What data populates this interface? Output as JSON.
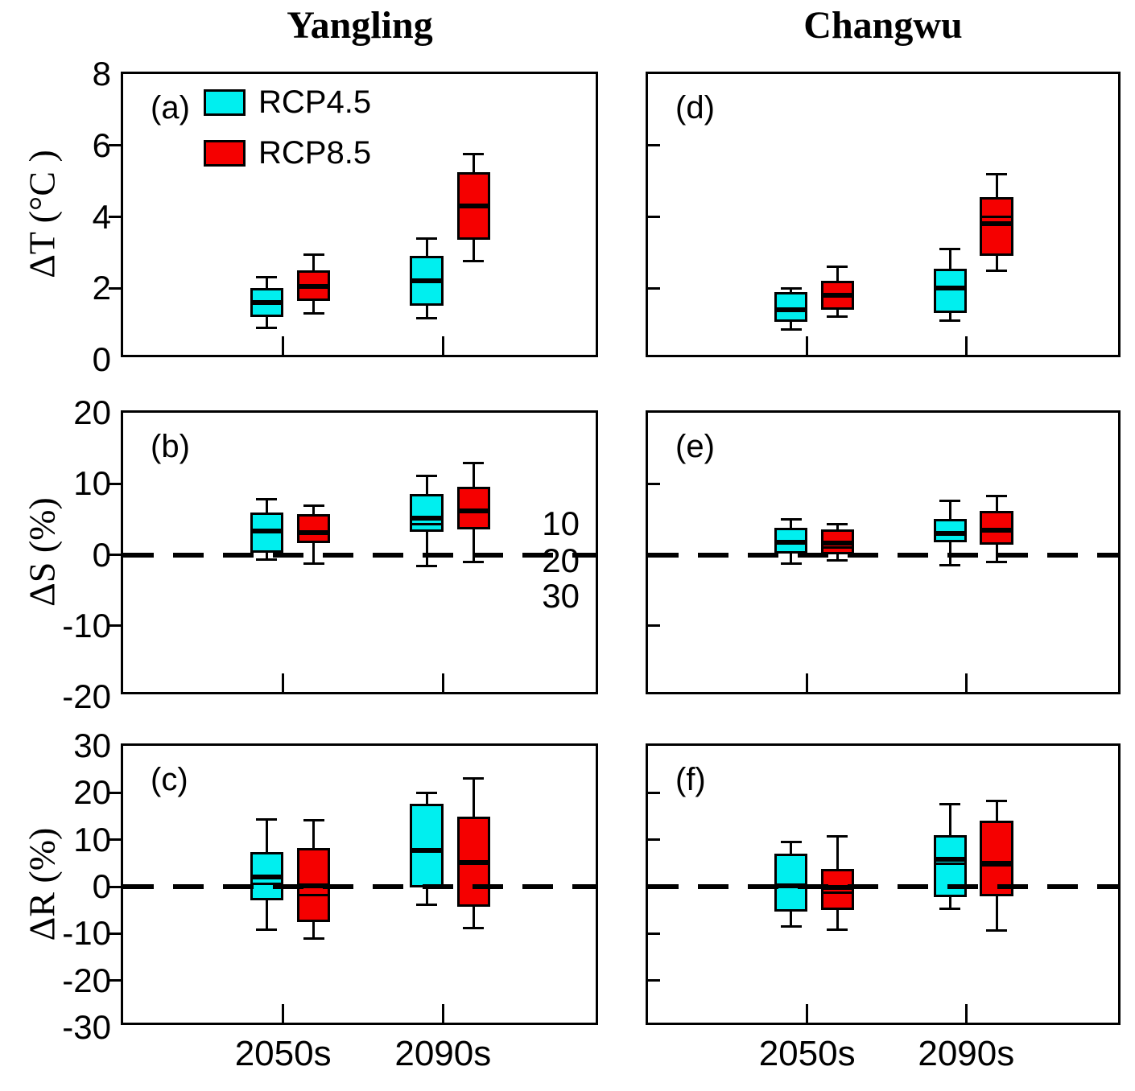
{
  "figure": {
    "column_titles": [
      "Yangling",
      "Changwu"
    ],
    "row_labels": [
      "ΔT (°C )",
      "ΔS (%)",
      "ΔR (%)"
    ],
    "legend": {
      "items": [
        {
          "label": "RCP4.5",
          "color": "#00efef"
        },
        {
          "label": "RCP8.5",
          "color": "#f50000"
        }
      ]
    },
    "x_axis_labels": [
      "2050s",
      "2090s"
    ]
  },
  "chart_data": [
    {
      "id": "a",
      "letter": "(a)",
      "type": "box",
      "site": "Yangling",
      "ylabel": "ΔT (°C )",
      "ylim": [
        0,
        8
      ],
      "yticks": [
        0,
        2,
        4,
        6,
        8
      ],
      "show_ytick_labels": true,
      "show_category_labels": false,
      "zero_line": false,
      "categories": [
        "2050s",
        "2090s"
      ],
      "legend_here": true,
      "series": [
        {
          "name": "RCP4.5",
          "color": "#00efef",
          "boxes": [
            {
              "whisker_low": 0.9,
              "q1": 1.2,
              "median": 1.6,
              "q3": 2.0,
              "whisker_high": 2.3
            },
            {
              "whisker_low": 1.15,
              "q1": 1.5,
              "median": 2.2,
              "q3": 2.9,
              "whisker_high": 3.4
            }
          ]
        },
        {
          "name": "RCP8.5",
          "color": "#f50000",
          "boxes": [
            {
              "whisker_low": 1.3,
              "q1": 1.65,
              "median": 2.05,
              "q3": 2.5,
              "whisker_high": 2.95
            },
            {
              "whisker_low": 2.75,
              "q1": 3.35,
              "median": 4.3,
              "q3": 5.25,
              "whisker_high": 5.75
            }
          ]
        }
      ]
    },
    {
      "id": "b",
      "letter": "(b)",
      "type": "box",
      "site": "Yangling",
      "ylabel": "ΔS (%)",
      "ylim": [
        -20,
        20
      ],
      "yticks": [
        -20,
        -10,
        0,
        10,
        20
      ],
      "show_ytick_labels": true,
      "show_category_labels": false,
      "zero_line": true,
      "categories": [
        "2050s",
        "2090s"
      ],
      "series": [
        {
          "name": "RCP4.5",
          "color": "#00efef",
          "boxes": [
            {
              "whisker_low": -0.7,
              "q1": 0.3,
              "median": 3.3,
              "q3": 5.9,
              "whisker_high": 7.8
            },
            {
              "whisker_low": -1.6,
              "q1": 3.2,
              "median": 5.1,
              "median2": 4.3,
              "q3": 8.6,
              "whisker_high": 11.1
            }
          ]
        },
        {
          "name": "RCP8.5",
          "color": "#f50000",
          "boxes": [
            {
              "whisker_low": -1.2,
              "q1": 1.6,
              "median": 3.1,
              "q3": 5.7,
              "whisker_high": 6.9
            },
            {
              "whisker_low": -1.0,
              "q1": 3.6,
              "median": 6.2,
              "q3": 9.6,
              "whisker_high": 12.9
            }
          ]
        }
      ],
      "annotations": [
        {
          "text": "10",
          "value": 4.4
        },
        {
          "text": "20",
          "value": -0.8
        },
        {
          "text": "30",
          "value": -5.8
        }
      ]
    },
    {
      "id": "c",
      "letter": "(c)",
      "type": "box",
      "site": "Yangling",
      "ylabel": "ΔR (%)",
      "ylim": [
        -30,
        30
      ],
      "yticks": [
        -30,
        -20,
        -10,
        0,
        10,
        20,
        30
      ],
      "show_ytick_labels": true,
      "show_category_labels": true,
      "zero_line": true,
      "categories": [
        "2050s",
        "2090s"
      ],
      "series": [
        {
          "name": "RCP4.5",
          "color": "#00efef",
          "boxes": [
            {
              "whisker_low": -9.2,
              "q1": -2.9,
              "median": 2.1,
              "median2": 0.6,
              "q3": 7.3,
              "whisker_high": 14.3
            },
            {
              "whisker_low": -3.8,
              "q1": -0.2,
              "median": 7.7,
              "q3": 17.7,
              "whisker_high": 20.0
            }
          ]
        },
        {
          "name": "RCP8.5",
          "color": "#f50000",
          "boxes": [
            {
              "whisker_low": -11.0,
              "q1": -7.5,
              "median": 0.2,
              "median2": -1.8,
              "q3": 8.2,
              "whisker_high": 14.1
            },
            {
              "whisker_low": -8.9,
              "q1": -4.2,
              "median": 5.2,
              "q3": 15.0,
              "whisker_high": 23.0
            }
          ]
        }
      ]
    },
    {
      "id": "d",
      "letter": "(d)",
      "type": "box",
      "site": "Changwu",
      "ylabel": "ΔT (°C )",
      "ylim": [
        0,
        8
      ],
      "yticks": [
        0,
        2,
        4,
        6,
        8
      ],
      "show_ytick_labels": false,
      "show_category_labels": false,
      "zero_line": false,
      "categories": [
        "2050s",
        "2090s"
      ],
      "series": [
        {
          "name": "RCP4.5",
          "color": "#00efef",
          "boxes": [
            {
              "whisker_low": 0.85,
              "q1": 1.05,
              "median": 1.4,
              "q3": 1.9,
              "whisker_high": 2.0
            },
            {
              "whisker_low": 1.1,
              "q1": 1.3,
              "median": 2.0,
              "q3": 2.55,
              "whisker_high": 3.1
            }
          ]
        },
        {
          "name": "RCP8.5",
          "color": "#f50000",
          "boxes": [
            {
              "whisker_low": 1.2,
              "q1": 1.4,
              "median": 1.8,
              "q3": 2.2,
              "whisker_high": 2.6
            },
            {
              "whisker_low": 2.5,
              "q1": 2.9,
              "median": 3.8,
              "median2": 4.0,
              "q3": 4.55,
              "whisker_high": 5.2
            }
          ]
        }
      ]
    },
    {
      "id": "e",
      "letter": "(e)",
      "type": "box",
      "site": "Changwu",
      "ylabel": "ΔS (%)",
      "ylim": [
        -20,
        20
      ],
      "yticks": [
        -20,
        -10,
        0,
        10,
        20
      ],
      "show_ytick_labels": false,
      "show_category_labels": false,
      "zero_line": true,
      "categories": [
        "2050s",
        "2090s"
      ],
      "series": [
        {
          "name": "RCP4.5",
          "color": "#00efef",
          "boxes": [
            {
              "whisker_low": -1.3,
              "q1": 0.2,
              "median": 1.7,
              "q3": 3.85,
              "whisker_high": 5.0
            },
            {
              "whisker_low": -1.5,
              "q1": 1.8,
              "median": 3.0,
              "q3": 5.0,
              "whisker_high": 7.6
            }
          ]
        },
        {
          "name": "RCP8.5",
          "color": "#f50000",
          "boxes": [
            {
              "whisker_low": -0.8,
              "q1": 0.0,
              "median": 1.6,
              "median2": 1.0,
              "q3": 3.6,
              "whisker_high": 4.3
            },
            {
              "whisker_low": -1.0,
              "q1": 1.4,
              "median": 3.4,
              "q3": 6.2,
              "whisker_high": 8.3
            }
          ]
        }
      ]
    },
    {
      "id": "f",
      "letter": "(f)",
      "type": "box",
      "site": "Changwu",
      "ylabel": "ΔR (%)",
      "ylim": [
        -30,
        30
      ],
      "yticks": [
        -30,
        -20,
        -10,
        0,
        10,
        20,
        30
      ],
      "show_ytick_labels": false,
      "show_category_labels": true,
      "zero_line": true,
      "categories": [
        "2050s",
        "2090s"
      ],
      "series": [
        {
          "name": "RCP4.5",
          "color": "#00efef",
          "boxes": [
            {
              "whisker_low": -8.5,
              "q1": -5.4,
              "median": 0.2,
              "q3": 7.0,
              "whisker_high": 9.6
            },
            {
              "whisker_low": -4.7,
              "q1": -2.3,
              "median": 5.9,
              "median2": 4.9,
              "q3": 11.0,
              "whisker_high": 17.6
            }
          ]
        },
        {
          "name": "RCP8.5",
          "color": "#f50000",
          "boxes": [
            {
              "whisker_low": -9.2,
              "q1": -5.0,
              "median": -0.2,
              "median2": -1.2,
              "q3": 3.7,
              "whisker_high": 10.8
            },
            {
              "whisker_low": -9.4,
              "q1": -2.1,
              "median": 5.0,
              "median2": 4.5,
              "q3": 14.1,
              "whisker_high": 18.3
            }
          ]
        }
      ]
    }
  ],
  "layout_hints": {
    "grid": "2 columns x 3 rows",
    "legend_position": "top-left of panel (a)",
    "grid_lines": "off"
  }
}
